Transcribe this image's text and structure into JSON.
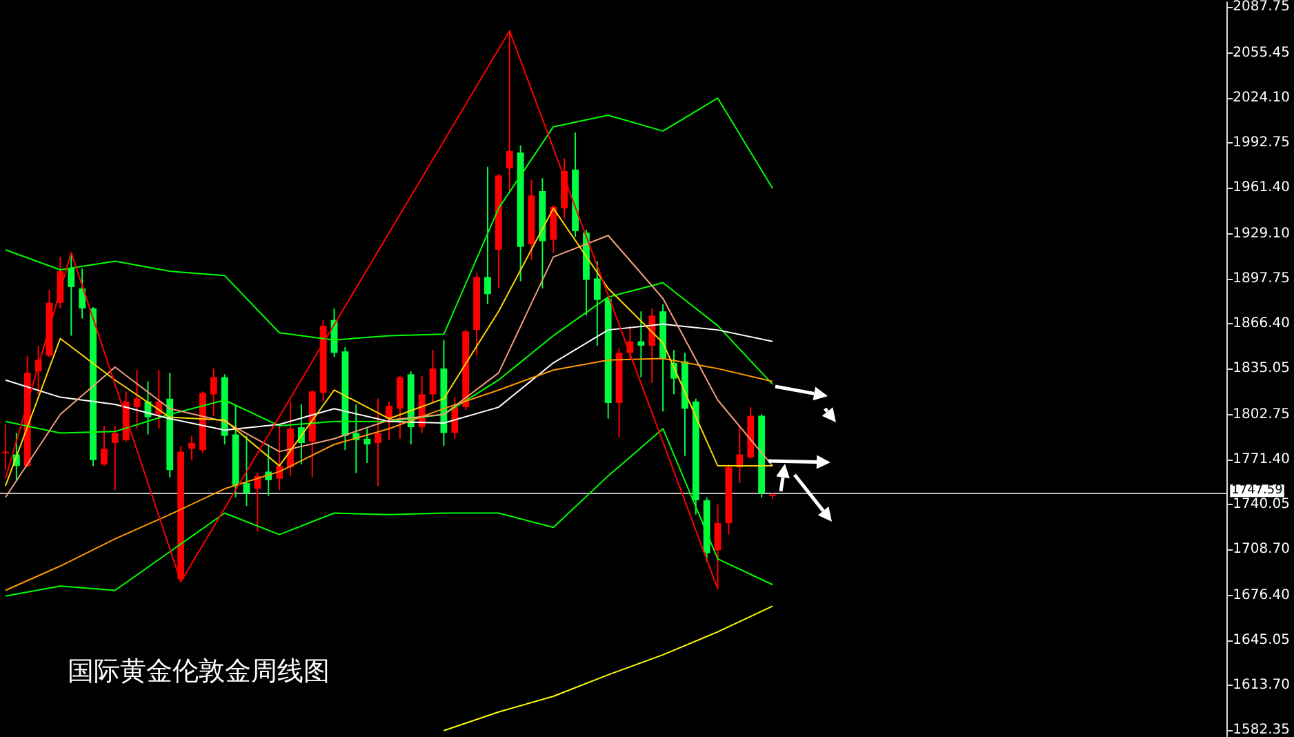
{
  "chart_data": {
    "type": "candlestick",
    "title": "国际黄金伦敦金周线图",
    "categories": [
      null,
      null,
      null,
      null,
      null,
      null,
      null,
      null,
      null,
      null,
      null,
      null,
      null,
      null,
      null,
      null,
      null,
      null,
      null,
      null,
      null,
      null,
      null,
      null,
      null,
      null,
      null,
      null,
      null,
      null,
      null,
      null,
      null,
      null,
      null,
      null,
      null,
      null,
      null,
      null,
      null,
      null,
      null,
      null,
      null,
      null,
      null,
      null,
      null,
      null,
      null,
      null,
      null,
      null,
      null,
      null,
      null,
      null,
      null,
      null,
      null,
      null,
      null,
      null,
      null,
      null,
      null,
      null,
      null,
      null,
      null,
      null,
      null,
      null,
      null,
      null,
      null,
      null,
      null,
      null,
      null,
      null,
      null,
      null,
      null,
      null,
      null,
      null,
      null,
      null,
      null,
      null,
      null,
      null,
      null,
      null,
      null,
      null,
      null,
      null,
      null,
      null,
      null,
      null,
      null,
      null,
      null,
      null,
      null,
      null,
      null,
      null
    ],
    "ylim": [
      1578,
      2091
    ],
    "yticks": [
      2087.75,
      2055.45,
      {
        "value": 2024.1,
        "label": "2024.10"
      },
      1992.75,
      {
        "value": 1961.4,
        "label": "1961.40"
      },
      {
        "value": 1929.1,
        "label": "1929.10"
      },
      1897.75,
      {
        "value": 1866.4,
        "label": "1866.40"
      },
      1835.05,
      1802.75,
      {
        "value": 1771.4,
        "label": "1771.40"
      },
      1740.05,
      {
        "value": 1708.7,
        "label": "1708.70"
      },
      {
        "value": 1676.4,
        "label": "1676.40"
      },
      1645.05,
      {
        "value": 1613.7,
        "label": "1613.70"
      },
      1582.35
    ],
    "tick_labels": "y",
    "grid": false,
    "line_style": "solid",
    "ref_lines": [
      {
        "axis": "y",
        "value": 1747.59,
        "label": "1747.59",
        "color": "#c0c0c0"
      }
    ],
    "series": [
      {
        "type": "line",
        "color": "#00ff00",
        "values": [
          1918,
          null,
          null,
          null,
          null,
          1904,
          null,
          null,
          null,
          null,
          1910,
          null,
          null,
          null,
          null,
          1903,
          null,
          null,
          null,
          null,
          1900,
          null,
          null,
          null,
          null,
          1860,
          null,
          null,
          null,
          null,
          1855,
          null,
          null,
          null,
          null,
          1858,
          null,
          null,
          null,
          null,
          1859,
          null,
          null,
          null,
          null,
          1947,
          null,
          null,
          null,
          null,
          2004,
          null,
          null,
          null,
          null,
          2012,
          null,
          null,
          null,
          null,
          2001,
          null,
          null,
          null,
          null,
          2024,
          null,
          null,
          null,
          null,
          1961,
          null,
          null,
          null,
          null,
          null,
          null,
          null,
          null,
          null,
          null,
          null,
          null,
          null,
          null,
          null,
          null,
          null,
          null,
          null,
          null,
          null,
          null,
          null,
          null,
          null,
          null,
          null,
          null,
          null,
          null,
          null,
          null,
          null,
          null,
          null,
          null,
          null,
          null,
          null,
          null,
          null
        ]
      },
      {
        "type": "line",
        "color": "#00ff00",
        "values": [
          1798,
          null,
          null,
          null,
          null,
          1790,
          null,
          null,
          null,
          null,
          1791,
          null,
          null,
          null,
          null,
          1803,
          null,
          null,
          null,
          null,
          1813,
          null,
          null,
          null,
          null,
          1795,
          null,
          null,
          null,
          null,
          1798,
          null,
          null,
          null,
          null,
          1798,
          null,
          null,
          null,
          null,
          1803,
          null,
          null,
          null,
          null,
          1827,
          null,
          null,
          null,
          null,
          1858,
          null,
          null,
          null,
          null,
          1885,
          null,
          null,
          null,
          null,
          1895,
          null,
          null,
          null,
          null,
          1865,
          null,
          null,
          null,
          null,
          1824,
          null,
          null,
          null,
          null,
          null,
          null,
          null,
          null,
          null,
          null,
          null,
          null,
          null,
          null,
          null,
          null,
          null,
          null,
          null,
          null,
          null,
          null,
          null,
          null,
          null,
          null,
          null,
          null,
          null,
          null,
          null,
          null,
          null,
          null,
          null,
          null,
          null,
          null,
          null,
          null,
          null
        ]
      },
      {
        "type": "line",
        "color": "#00ff00",
        "values": [
          1676,
          null,
          null,
          null,
          null,
          1683,
          null,
          null,
          null,
          null,
          1680,
          null,
          null,
          null,
          null,
          1707,
          null,
          null,
          null,
          null,
          1734,
          null,
          null,
          null,
          null,
          1719,
          null,
          null,
          null,
          null,
          1734,
          null,
          null,
          null,
          null,
          1733,
          null,
          null,
          null,
          null,
          1734,
          null,
          null,
          null,
          null,
          1734,
          null,
          null,
          null,
          null,
          1724,
          null,
          null,
          null,
          null,
          1760,
          null,
          null,
          null,
          null,
          1793,
          null,
          null,
          null,
          null,
          1702,
          null,
          null,
          null,
          null,
          1684,
          null,
          null,
          null,
          null,
          null,
          null,
          null,
          null,
          null,
          null,
          null,
          null,
          null,
          null,
          null,
          null,
          null,
          null,
          null,
          null,
          null,
          null,
          null,
          null,
          null,
          null,
          null,
          null,
          null,
          null,
          null,
          null,
          null,
          null,
          null,
          null,
          null,
          null,
          null,
          null,
          null
        ]
      },
      {
        "type": "line",
        "color": "#ffffff",
        "values": [
          1827,
          null,
          null,
          null,
          null,
          1815,
          null,
          null,
          null,
          null,
          1810,
          null,
          null,
          null,
          null,
          1800,
          null,
          null,
          null,
          null,
          1792,
          null,
          null,
          null,
          null,
          1796,
          null,
          null,
          null,
          null,
          1807,
          null,
          null,
          null,
          null,
          1798,
          null,
          null,
          null,
          null,
          1797,
          null,
          null,
          null,
          null,
          1808,
          null,
          null,
          null,
          null,
          1839,
          null,
          null,
          null,
          null,
          1862,
          null,
          null,
          null,
          null,
          1866,
          null,
          null,
          null,
          null,
          1862,
          null,
          null,
          null,
          null,
          1854,
          null,
          null,
          null,
          null,
          null,
          null,
          null,
          null,
          null,
          null,
          null,
          null,
          null,
          null,
          null,
          null,
          null,
          null,
          null,
          null,
          null,
          null,
          null,
          null,
          null,
          null,
          null,
          null,
          null,
          null,
          null,
          null,
          null,
          null,
          null,
          null,
          null,
          null,
          null,
          null,
          null
        ]
      },
      {
        "type": "line",
        "color": "#ff9900",
        "values": [
          1680,
          null,
          null,
          null,
          null,
          1697,
          null,
          null,
          null,
          null,
          1716,
          null,
          null,
          null,
          null,
          1733,
          null,
          null,
          null,
          null,
          1751,
          null,
          null,
          null,
          null,
          1763,
          null,
          null,
          null,
          null,
          1782,
          null,
          null,
          null,
          null,
          1793,
          null,
          null,
          null,
          null,
          1807,
          null,
          null,
          null,
          null,
          1820,
          null,
          null,
          null,
          null,
          1834,
          null,
          null,
          null,
          null,
          1841,
          null,
          null,
          null,
          null,
          1842,
          null,
          null,
          null,
          null,
          1835,
          null,
          null,
          null,
          null,
          1826,
          null,
          null,
          null,
          null,
          null,
          null,
          null,
          null,
          null,
          null,
          null,
          null,
          null,
          null,
          null,
          null,
          null,
          null,
          null,
          null,
          null,
          null,
          null,
          null,
          null,
          null,
          null,
          null,
          null,
          null,
          null,
          null,
          null,
          null,
          null,
          null,
          null,
          null,
          null,
          null,
          null
        ]
      },
      {
        "type": "line",
        "color": "#f4a07a",
        "values": [
          1745,
          null,
          null,
          null,
          null,
          1803,
          null,
          null,
          null,
          null,
          1836,
          null,
          null,
          null,
          null,
          1807,
          null,
          null,
          null,
          null,
          1798,
          null,
          null,
          null,
          null,
          1777,
          null,
          null,
          null,
          null,
          1786,
          null,
          null,
          null,
          null,
          1799,
          null,
          null,
          null,
          null,
          1803,
          null,
          null,
          null,
          null,
          1832,
          null,
          null,
          null,
          null,
          1913,
          null,
          null,
          null,
          null,
          1928,
          null,
          null,
          null,
          null,
          1884,
          null,
          null,
          null,
          null,
          1813,
          null,
          null,
          null,
          null,
          1767,
          null,
          null,
          null,
          null,
          null,
          null,
          null,
          null,
          null,
          null,
          null,
          null,
          null,
          null,
          null,
          null,
          null,
          null,
          null,
          null,
          null,
          null,
          null,
          null,
          null,
          null,
          null,
          null,
          null,
          null,
          null,
          null,
          null,
          null,
          null,
          null,
          null,
          null,
          null,
          null,
          null
        ]
      },
      {
        "type": "line",
        "color": "#ffd700",
        "values": [
          1753,
          null,
          null,
          null,
          null,
          1856,
          null,
          null,
          null,
          null,
          1827,
          null,
          null,
          null,
          null,
          1801,
          null,
          null,
          null,
          null,
          1799,
          null,
          null,
          null,
          null,
          1767,
          null,
          null,
          null,
          null,
          1820,
          null,
          null,
          null,
          null,
          1800,
          null,
          null,
          null,
          null,
          1814,
          null,
          null,
          null,
          null,
          1875,
          null,
          null,
          null,
          null,
          1947,
          null,
          null,
          null,
          null,
          1891,
          null,
          null,
          null,
          null,
          1853,
          null,
          null,
          null,
          null,
          1767,
          null,
          null,
          null,
          null,
          1767,
          null,
          null,
          null,
          null,
          null,
          null,
          null,
          null,
          null,
          null,
          null,
          null,
          null,
          null,
          null,
          null,
          null,
          null,
          null,
          null,
          null,
          null,
          null,
          null,
          null,
          null,
          null,
          null,
          null,
          null,
          null,
          null,
          null,
          null,
          null,
          null,
          null,
          null,
          null,
          null,
          null
        ]
      },
      {
        "type": "line",
        "color": "#ffff00",
        "values": [
          null,
          null,
          null,
          null,
          null,
          null,
          null,
          null,
          null,
          null,
          null,
          null,
          null,
          null,
          null,
          null,
          null,
          null,
          null,
          null,
          null,
          null,
          null,
          null,
          null,
          null,
          null,
          null,
          null,
          null,
          null,
          null,
          null,
          null,
          null,
          null,
          null,
          null,
          null,
          null,
          1582,
          null,
          null,
          null,
          null,
          1595,
          null,
          null,
          null,
          null,
          1606,
          null,
          null,
          null,
          null,
          1621,
          null,
          null,
          null,
          null,
          1635,
          null,
          null,
          null,
          null,
          1651,
          null,
          null,
          null,
          null,
          1669,
          null,
          null,
          null,
          null,
          null,
          null,
          null,
          null,
          null,
          null,
          null,
          null,
          null,
          null,
          null,
          null,
          null,
          null,
          null,
          null,
          null,
          null,
          null,
          null,
          null,
          null,
          null,
          null,
          null,
          null,
          null,
          null,
          null,
          null,
          null,
          null,
          null,
          null,
          null,
          null,
          null
        ]
      },
      {
        "type": "line",
        "color": "#ff0000",
        "values": [
          1758,
          null,
          null,
          null,
          null,
          null,
          1916,
          null,
          null,
          null,
          null,
          null,
          null,
          null,
          null,
          null,
          1686,
          null,
          null,
          null,
          null,
          null,
          null,
          null,
          null,
          null,
          null,
          null,
          null,
          null,
          null,
          null,
          null,
          null,
          null,
          null,
          null,
          null,
          null,
          null,
          null,
          null,
          null,
          null,
          null,
          null,
          2071,
          null,
          null,
          null,
          null,
          null,
          null,
          null,
          null,
          null,
          null,
          null,
          null,
          null,
          null,
          null,
          null,
          null,
          null,
          1681,
          null,
          null,
          null,
          null,
          null,
          null,
          null,
          null,
          null,
          null,
          null,
          null,
          null,
          null,
          null,
          null,
          null,
          null,
          null,
          null,
          null,
          null,
          null,
          null,
          null,
          null,
          null,
          null,
          null,
          null,
          null,
          null,
          null,
          null,
          null,
          null,
          null,
          null,
          null,
          null,
          null,
          null,
          null,
          null,
          null,
          null
        ]
      },
      {
        "colors": [
          "#ff0000",
          "#00ff40",
          "#ff0000",
          "#ff0000",
          "#ff0000",
          "#ff0000",
          "#00ff40",
          "#00ff40",
          "#00ff40",
          "#ff0000",
          "#ff0000",
          "#ff0000",
          "#ff0000",
          "#00ff40",
          "#ff0000",
          "#00ff40",
          "#ff0000",
          "#ff0000",
          "#ff0000",
          "#ff0000",
          "#00ff40",
          "#00ff40",
          "#00ff40",
          "#ff0000",
          "#00ff40",
          "#ff0000",
          "#ff0000",
          "#00ff40",
          "#ff0000",
          "#ff0000",
          "#00ff40",
          "#00ff40",
          "#00ff40",
          "#00ff40",
          "#ff0000",
          "#ff0000",
          "#ff0000",
          "#00ff40",
          "#ff0000",
          "#ff0000",
          "#00ff40",
          "#ff0000",
          "#ff0000",
          "#ff0000",
          "#00ff40",
          "#ff0000",
          "#ff0000",
          "#00ff40",
          "#ff0000",
          "#00ff40",
          "#ff0000",
          "#ff0000",
          "#00ff40",
          "#00ff40",
          "#00ff40",
          "#00ff40",
          "#ff0000",
          "#ff0000",
          "#00ff40",
          "#ff0000",
          "#00ff40",
          "#00ff40",
          "#00ff40",
          "#00ff40",
          "#00ff40",
          "#ff0000",
          "#ff0000",
          "#ff0000",
          "#ff0000",
          "#00ff40",
          "#ff0000",
          null,
          null,
          null,
          null,
          null,
          null,
          null,
          null,
          null,
          null,
          null,
          null,
          null,
          null,
          null,
          null,
          null,
          null,
          null,
          null,
          null,
          null,
          null,
          null,
          null,
          null,
          null,
          null,
          null,
          null,
          null,
          null,
          null,
          null,
          null,
          null,
          null,
          null,
          null,
          null,
          null
        ],
        "ohlc": [
          [
            1776,
            1796,
            1764,
            1777
          ],
          [
            1775,
            1790,
            1757,
            1767
          ],
          [
            1767,
            1844,
            1766,
            1832
          ],
          [
            1833,
            1851,
            1817,
            1841
          ],
          [
            1844,
            1890,
            1843,
            1881
          ],
          [
            1881,
            1913,
            1877,
            1903
          ],
          [
            1905,
            1916,
            1858,
            1892
          ],
          [
            1891,
            1905,
            1870,
            1877
          ],
          [
            1877,
            1878,
            1767,
            1771
          ],
          [
            1768,
            1795,
            1767,
            1779
          ],
          [
            1783,
            1795,
            1750,
            1790
          ],
          [
            1785,
            1819,
            1784,
            1812
          ],
          [
            1808,
            1834,
            1793,
            1814
          ],
          [
            1812,
            1826,
            1789,
            1801
          ],
          [
            1803,
            1834,
            1793,
            1812
          ],
          [
            1814,
            1832,
            1759,
            1764
          ],
          [
            1688,
            1781,
            1686,
            1777
          ],
          [
            1779,
            1788,
            1771,
            1783
          ],
          [
            1778,
            1819,
            1776,
            1818
          ],
          [
            1817,
            1835,
            1802,
            1829
          ],
          [
            1829,
            1831,
            1782,
            1788
          ],
          [
            1789,
            1809,
            1745,
            1753
          ],
          [
            1755,
            1788,
            1739,
            1748
          ],
          [
            1751,
            1762,
            1721,
            1760
          ],
          [
            1763,
            1782,
            1746,
            1757
          ],
          [
            1758,
            1796,
            1750,
            1767
          ],
          [
            1766,
            1812,
            1760,
            1793
          ],
          [
            1794,
            1810,
            1768,
            1783
          ],
          [
            1784,
            1820,
            1759,
            1819
          ],
          [
            1818,
            1869,
            1812,
            1865
          ],
          [
            1869,
            1877,
            1843,
            1846
          ],
          [
            1847,
            1850,
            1778,
            1788
          ],
          [
            1790,
            1810,
            1762,
            1785
          ],
          [
            1786,
            1793,
            1769,
            1782
          ],
          [
            1783,
            1814,
            1753,
            1790
          ],
          [
            1800,
            1812,
            1785,
            1809
          ],
          [
            1807,
            1830,
            1786,
            1829
          ],
          [
            1831,
            1833,
            1782,
            1794
          ],
          [
            1794,
            1830,
            1790,
            1817
          ],
          [
            1817,
            1848,
            1811,
            1835
          ],
          [
            1835,
            1855,
            1781,
            1790
          ],
          [
            1790,
            1815,
            1786,
            1808
          ],
          [
            1808,
            1862,
            1806,
            1861
          ],
          [
            1862,
            1902,
            1844,
            1899
          ],
          [
            1899,
            1976,
            1880,
            1887
          ],
          [
            1918,
            1971,
            1891,
            1970
          ],
          [
            1975,
            2071,
            1958,
            1987
          ],
          [
            1986,
            1991,
            1896,
            1920
          ],
          [
            1922,
            1967,
            1911,
            1956
          ],
          [
            1959,
            1968,
            1891,
            1924
          ],
          [
            1925,
            1949,
            1916,
            1948
          ],
          [
            1947,
            1982,
            1940,
            1973
          ],
          [
            1974,
            2000,
            1927,
            1931
          ],
          [
            1930,
            1932,
            1872,
            1897
          ],
          [
            1898,
            1910,
            1851,
            1883
          ],
          [
            1884,
            1885,
            1800,
            1811
          ],
          [
            1811,
            1849,
            1787,
            1846
          ],
          [
            1846,
            1865,
            1841,
            1854
          ],
          [
            1854,
            1875,
            1829,
            1851
          ],
          [
            1851,
            1877,
            1825,
            1872
          ],
          [
            1875,
            1880,
            1805,
            1842
          ],
          [
            1839,
            1848,
            1817,
            1828
          ],
          [
            1840,
            1846,
            1774,
            1807
          ],
          [
            1812,
            1814,
            1733,
            1743
          ],
          [
            1743,
            1745,
            1700,
            1706
          ],
          [
            1708,
            1740,
            1681,
            1727
          ],
          [
            1727,
            1768,
            1719,
            1766
          ],
          [
            1766,
            1795,
            1755,
            1775
          ],
          [
            1773,
            1808,
            1772,
            1802
          ],
          [
            1802,
            1803,
            1745,
            1748
          ],
          [
            1746,
            1748,
            1744,
            1747
          ],
          null,
          null,
          null,
          null,
          null,
          null,
          null,
          null,
          null,
          null,
          null,
          null,
          null,
          null,
          null,
          null,
          null,
          null,
          null,
          null,
          null,
          null,
          null,
          null,
          null,
          null,
          null,
          null,
          null,
          null,
          null,
          null,
          null,
          null,
          null,
          null,
          null,
          null,
          null,
          null,
          null
        ]
      }
    ]
  }
}
